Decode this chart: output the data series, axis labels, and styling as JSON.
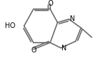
{
  "bg_color": "#ffffff",
  "line_color": "#6b6b6b",
  "text_color": "#000000",
  "bond_lw": 1.2,
  "figsize": [
    1.36,
    0.83
  ],
  "dpi": 100,
  "xlim": [
    0.0,
    1.36
  ],
  "ylim": [
    0.0,
    0.83
  ],
  "font_size": 7
}
